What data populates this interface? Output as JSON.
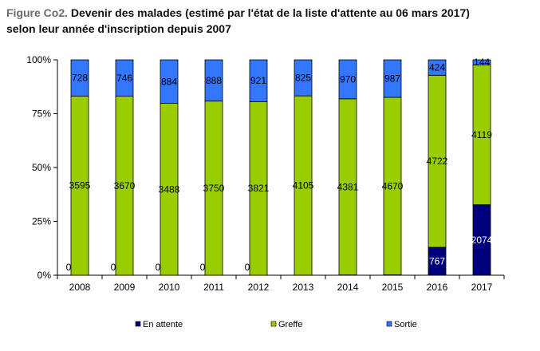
{
  "title": {
    "prefix": "Figure Co2.",
    "text": "Devenir des malades (estimé par l'état de la liste d'attente au 06 mars 2017)",
    "line2": "selon leur année d'inscription depuis 2007"
  },
  "colors": {
    "en_attente": "#00007c",
    "greffe": "#9acd00",
    "sortie": "#3376ff",
    "outline": "#000000",
    "grid": "#c0c0c0"
  },
  "chart_data": {
    "type": "bar",
    "stacked": "percent",
    "categories": [
      "2008",
      "2009",
      "2010",
      "2011",
      "2012",
      "2013",
      "2014",
      "2015",
      "2016",
      "2017"
    ],
    "series": [
      {
        "name": "En attente",
        "values": [
          0,
          0,
          0,
          0,
          0,
          1,
          7,
          10,
          767,
          2074
        ]
      },
      {
        "name": "Greffe",
        "values": [
          3595,
          3670,
          3488,
          3750,
          3821,
          4105,
          4381,
          4670,
          4722,
          4119
        ]
      },
      {
        "name": "Sortie",
        "values": [
          728,
          746,
          884,
          888,
          921,
          825,
          970,
          987,
          424,
          144
        ]
      }
    ],
    "y_ticks": [
      "0%",
      "25%",
      "50%",
      "75%",
      "100%"
    ],
    "ylim": [
      0,
      100
    ],
    "legend_position": "bottom",
    "grid": false
  }
}
